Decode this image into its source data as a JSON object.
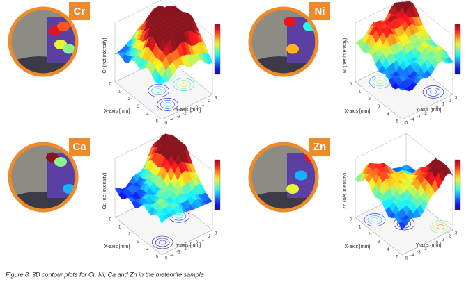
{
  "panels": [
    {
      "element": "Cr",
      "z_axis_label": "Cr (net intensity)",
      "x_axis_label": "X-axis [mm]",
      "y_axis_label": "Y-axis [mm]",
      "x_ticks": [
        0,
        1,
        2,
        3,
        4,
        5
      ],
      "y_ticks": [
        -5,
        -4,
        -3,
        -2,
        -1,
        0,
        1,
        2,
        3
      ]
    },
    {
      "element": "Ni",
      "z_axis_label": "Ni (net intensity)",
      "x_axis_label": "X-axis [mm]",
      "y_axis_label": "Y-axis [mm]",
      "x_ticks": [
        0,
        1,
        2,
        3,
        4,
        5
      ],
      "y_ticks": [
        -5,
        -4,
        -3,
        -2,
        -1,
        0,
        1,
        2,
        3
      ]
    },
    {
      "element": "Ca",
      "z_axis_label": "Ca (net intensity)",
      "x_axis_label": "X-axis [mm]",
      "y_axis_label": "Y-axis [mm]",
      "x_ticks": [
        0,
        1,
        2,
        3,
        4,
        5
      ],
      "y_ticks": [
        -5,
        -4,
        -3,
        -2,
        -1,
        0,
        1,
        2,
        3
      ]
    },
    {
      "element": "Zn",
      "z_axis_label": "Zn (net intensity)",
      "x_axis_label": "X-axis [mm]",
      "y_axis_label": "Y-axis [mm]",
      "x_ticks": [
        0,
        1,
        2,
        3,
        4,
        5
      ],
      "y_ticks": [
        -5,
        -4,
        -3,
        -2,
        -1,
        0,
        1,
        2,
        3
      ]
    }
  ],
  "caption": "Figure 8. 3D contour plots for Cr, Ni, Ca and Zn in the meteorite sample"
}
